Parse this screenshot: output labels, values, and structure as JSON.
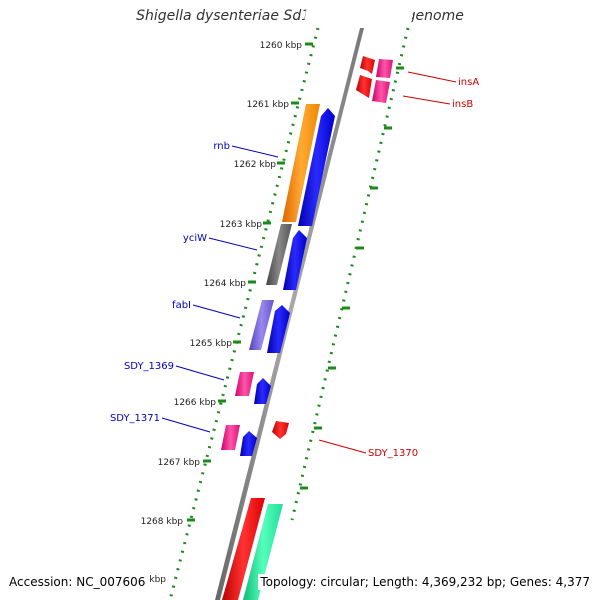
{
  "title": "Shigella dysenteriae Sd197, complete genome",
  "accession": "Accession: NC_007606",
  "topology": "Topology: circular; Length: 4,369,232 bp; Genes: 4,377",
  "colors": {
    "backbone": "#888888",
    "tick": "#1a8a1a",
    "label_forward": "#0000c0",
    "label_reverse": "#cc0000",
    "rrna": "#ff2020",
    "trna": "#ff3399",
    "cds_forward": "#0000ee",
    "cds_reverse": "#ff0000",
    "misc_orange": "#ff9900",
    "misc_gray": "#666666",
    "misc_purple": "#7766dd",
    "misc_green": "#22ee99"
  },
  "ticks": [
    "1260 kbp",
    "1261 kbp",
    "1262 kbp",
    "1263 kbp",
    "1264 kbp",
    "1265 kbp",
    "1266 kbp",
    "1267 kbp",
    "1268 kbp",
    "1269 kbp"
  ],
  "gene_labels": {
    "rnb": "rnb",
    "yciW": "yciW",
    "fabI": "fabI",
    "SDY_1369": "SDY_1369",
    "SDY_1371": "SDY_1371",
    "insA": "insA",
    "insB": "insB",
    "SDY_1370": "SDY_1370"
  }
}
